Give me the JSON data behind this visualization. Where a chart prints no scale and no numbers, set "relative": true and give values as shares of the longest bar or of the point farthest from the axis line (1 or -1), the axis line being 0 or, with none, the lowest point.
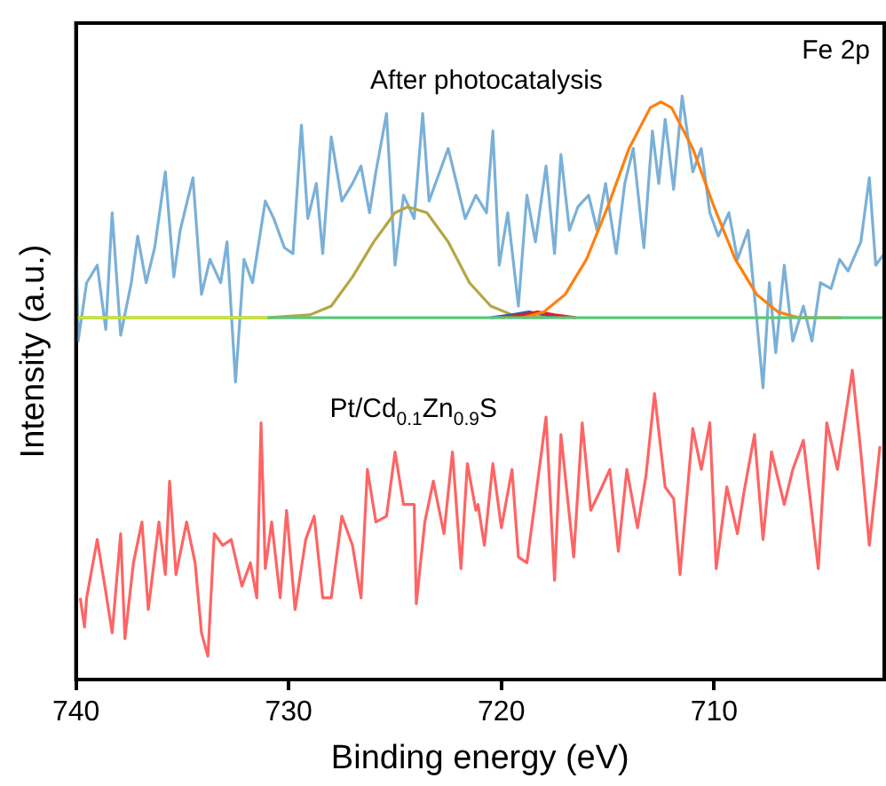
{
  "chart_data": {
    "type": "line",
    "xlabel": "Binding energy (eV)",
    "ylabel": "Intensity (a.u.)",
    "annotations": [
      "Fe 2p"
    ],
    "relative": true,
    "xlim": [
      740,
      702
    ],
    "xticks": [
      740,
      730,
      720,
      710
    ],
    "grid": false,
    "legend": false,
    "marker": "none",
    "line_style": "solid",
    "series": [
      {
        "name": "After photocatalysis",
        "color": "#7ab0d8",
        "x": [
          740.0,
          739.9,
          739.5,
          739.0,
          738.6,
          738.3,
          737.9,
          737.4,
          737.1,
          736.7,
          736.3,
          735.8,
          735.4,
          735.1,
          734.5,
          734.1,
          733.7,
          733.2,
          732.9,
          732.5,
          732.1,
          731.7,
          731.1,
          730.7,
          730.2,
          729.8,
          729.4,
          729.1,
          728.7,
          728.4,
          728.0,
          727.5,
          727.0,
          726.6,
          726.2,
          725.9,
          725.4,
          725.0,
          724.6,
          724.1,
          723.7,
          723.4,
          722.9,
          722.5,
          722.1,
          721.7,
          721.2,
          720.7,
          720.4,
          720.1,
          719.7,
          719.2,
          718.8,
          718.4,
          717.9,
          717.5,
          717.2,
          716.8,
          716.4,
          715.9,
          715.5,
          715.1,
          714.6,
          714.2,
          713.8,
          713.3,
          712.9,
          712.6,
          712.3,
          711.9,
          711.5,
          711.0,
          710.6,
          710.2,
          709.8,
          709.3,
          708.9,
          708.4,
          708.0,
          707.7,
          707.4,
          707.1,
          706.7,
          706.3,
          705.8,
          705.4,
          705.0,
          704.5,
          704.1,
          703.7,
          703.1,
          702.7,
          702.4,
          702.0
        ],
        "values": [
          0.76,
          0.58,
          0.68,
          0.71,
          0.6,
          0.8,
          0.59,
          0.68,
          0.76,
          0.68,
          0.74,
          0.87,
          0.69,
          0.77,
          0.86,
          0.66,
          0.72,
          0.68,
          0.75,
          0.51,
          0.72,
          0.68,
          0.82,
          0.79,
          0.74,
          0.73,
          0.95,
          0.79,
          0.85,
          0.73,
          0.93,
          0.82,
          0.85,
          0.88,
          0.8,
          0.87,
          0.97,
          0.71,
          0.83,
          0.79,
          0.97,
          0.82,
          0.87,
          0.91,
          0.85,
          0.79,
          0.83,
          0.8,
          0.94,
          0.71,
          0.8,
          0.64,
          0.83,
          0.75,
          0.88,
          0.73,
          0.9,
          0.77,
          0.81,
          0.83,
          0.77,
          0.85,
          0.73,
          0.85,
          0.91,
          0.74,
          0.94,
          0.85,
          0.96,
          0.84,
          1.0,
          0.87,
          0.91,
          0.8,
          0.76,
          0.8,
          0.72,
          0.77,
          0.62,
          0.5,
          0.68,
          0.56,
          0.71,
          0.58,
          0.64,
          0.58,
          0.68,
          0.67,
          0.72,
          0.7,
          0.75,
          0.86,
          0.71,
          0.73
        ]
      },
      {
        "name": "Pt/Cd$_{0.1}$Zn$_{0.9}$S",
        "color": "#ff6464",
        "x": [
          739.8,
          739.6,
          739.5,
          739.0,
          738.6,
          738.3,
          737.9,
          737.7,
          737.3,
          736.9,
          736.6,
          736.1,
          735.8,
          735.6,
          735.3,
          734.8,
          734.4,
          734.1,
          733.8,
          733.5,
          733.1,
          732.7,
          732.2,
          731.8,
          731.5,
          731.3,
          731.1,
          730.8,
          730.4,
          730.1,
          729.7,
          729.2,
          728.8,
          728.4,
          728.0,
          727.5,
          727.0,
          726.6,
          726.3,
          725.9,
          725.4,
          725.0,
          724.6,
          724.1,
          724.0,
          723.6,
          723.2,
          722.7,
          722.3,
          721.9,
          721.6,
          721.2,
          721.1,
          720.8,
          720.4,
          720.0,
          719.5,
          719.2,
          718.8,
          718.4,
          717.9,
          717.5,
          717.2,
          716.6,
          716.2,
          715.8,
          715.4,
          714.9,
          714.5,
          714.1,
          713.6,
          713.2,
          712.8,
          712.3,
          711.9,
          711.6,
          711.0,
          710.6,
          710.2,
          709.9,
          709.4,
          708.9,
          708.6,
          708.1,
          707.7,
          707.3,
          706.7,
          706.3,
          705.8,
          705.1,
          704.7,
          704.2,
          703.5,
          703.1,
          702.7,
          702.2
        ],
        "values": [
          0.14,
          0.09,
          0.14,
          0.24,
          0.15,
          0.08,
          0.25,
          0.07,
          0.2,
          0.27,
          0.12,
          0.27,
          0.18,
          0.34,
          0.18,
          0.27,
          0.2,
          0.08,
          0.04,
          0.25,
          0.23,
          0.24,
          0.16,
          0.2,
          0.14,
          0.44,
          0.19,
          0.27,
          0.14,
          0.29,
          0.12,
          0.24,
          0.28,
          0.14,
          0.14,
          0.28,
          0.23,
          0.14,
          0.36,
          0.27,
          0.28,
          0.39,
          0.3,
          0.3,
          0.13,
          0.27,
          0.34,
          0.25,
          0.39,
          0.19,
          0.37,
          0.29,
          0.3,
          0.23,
          0.37,
          0.26,
          0.36,
          0.21,
          0.2,
          0.31,
          0.45,
          0.17,
          0.42,
          0.21,
          0.44,
          0.29,
          0.32,
          0.36,
          0.22,
          0.36,
          0.26,
          0.35,
          0.49,
          0.33,
          0.31,
          0.18,
          0.43,
          0.36,
          0.44,
          0.19,
          0.33,
          0.25,
          0.32,
          0.42,
          0.24,
          0.39,
          0.3,
          0.36,
          0.41,
          0.19,
          0.44,
          0.36,
          0.53,
          0.39,
          0.23,
          0.4
        ]
      },
      {
        "color": "#b5a642",
        "x": [
          731,
          729,
          728,
          727,
          726,
          725,
          724.4,
          723.5,
          722.5,
          721.5,
          720.5,
          719.5,
          718
        ],
        "values": [
          0.62,
          0.625,
          0.64,
          0.69,
          0.75,
          0.8,
          0.81,
          0.8,
          0.75,
          0.68,
          0.64,
          0.625,
          0.62
        ]
      },
      {
        "color": "#2b5fb0",
        "x": [
          720.5,
          719.5,
          718.7,
          718,
          717
        ],
        "values": [
          0.62,
          0.625,
          0.63,
          0.625,
          0.62
        ]
      },
      {
        "color": "#e02020",
        "x": [
          720,
          719,
          718.3,
          717.5,
          716.5
        ],
        "values": [
          0.62,
          0.625,
          0.63,
          0.625,
          0.62
        ]
      },
      {
        "color": "#ff7f0e",
        "x": [
          719,
          718,
          717,
          716,
          715,
          714,
          713,
          712.5,
          712,
          711,
          710,
          709,
          708,
          707,
          706,
          704
        ],
        "values": [
          0.62,
          0.63,
          0.66,
          0.72,
          0.81,
          0.91,
          0.98,
          0.99,
          0.98,
          0.91,
          0.81,
          0.72,
          0.66,
          0.63,
          0.62,
          0.62
        ]
      },
      {
        "color": "#5cc87a",
        "x": [
          740,
          702
        ],
        "values": [
          0.62,
          0.62
        ]
      },
      {
        "color": "#d4e02a",
        "x": [
          740,
          731
        ],
        "values": [
          0.62,
          0.62
        ]
      }
    ]
  }
}
